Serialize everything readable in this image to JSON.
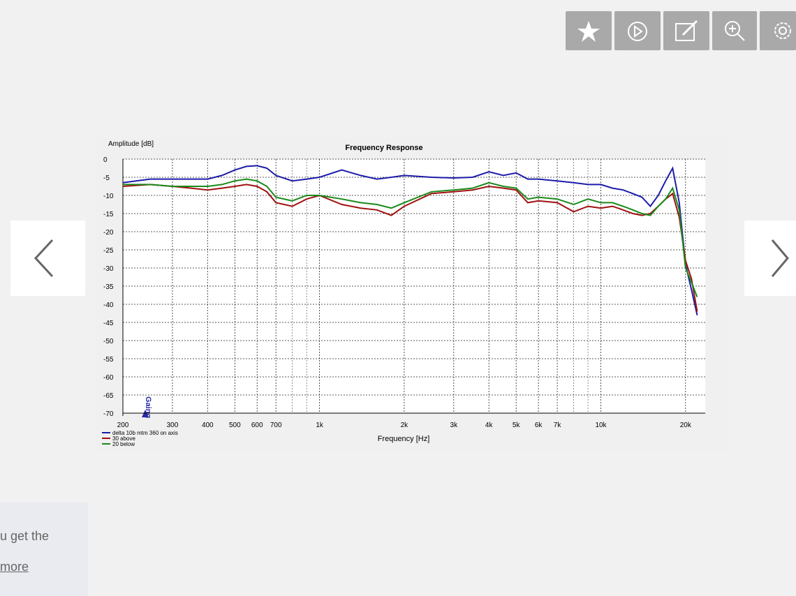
{
  "chart_data": {
    "type": "line",
    "title": "Frequency Response",
    "y_label": "Amplitude [dB]",
    "x_label": "Frequency [Hz]",
    "annotation": "Gaing",
    "x_scale": "log",
    "grid": true,
    "xlim": [
      200,
      23500
    ],
    "ylim": [
      -70,
      0
    ],
    "xticks": [
      200,
      300,
      400,
      500,
      600,
      700,
      {
        "value": 1000,
        "label": "1k"
      },
      {
        "value": 2000,
        "label": "2k"
      },
      {
        "value": 3000,
        "label": "3k"
      },
      {
        "value": 4000,
        "label": "4k"
      },
      {
        "value": 5000,
        "label": "5k"
      },
      {
        "value": 6000,
        "label": "6k"
      },
      {
        "value": 7000,
        "label": "7k"
      },
      {
        "value": 10000,
        "label": "10k"
      },
      {
        "value": 20000,
        "label": "20k"
      }
    ],
    "xminorticks": [
      800,
      900,
      8000,
      9000
    ],
    "yticks": [
      0,
      -5,
      -10,
      -15,
      -20,
      -25,
      -30,
      -35,
      -40,
      -45,
      -50,
      -55,
      -60,
      -65,
      -70
    ],
    "x": [
      200,
      250,
      300,
      350,
      400,
      450,
      500,
      550,
      600,
      650,
      700,
      800,
      900,
      1000,
      1200,
      1400,
      1600,
      1800,
      2000,
      2500,
      3000,
      3500,
      4000,
      4500,
      5000,
      5500,
      6000,
      7000,
      8000,
      9000,
      10000,
      11000,
      12000,
      13000,
      14000,
      15000,
      16000,
      17000,
      18000,
      19000,
      20000,
      21000,
      22000
    ],
    "series": [
      {
        "name": "delta 10b mtm 360 on axis",
        "color": "#1c1caa",
        "values": [
          -6.5,
          -5.5,
          -5.5,
          -5.5,
          -5.5,
          -4.5,
          -3,
          -2,
          -1.8,
          -2.5,
          -4.5,
          -6,
          -5.5,
          -5,
          -3,
          -4.5,
          -5.5,
          -5,
          -4.5,
          -5,
          -5.2,
          -5,
          -3.5,
          -4.5,
          -3.8,
          -5.5,
          -5.5,
          -6,
          -6.5,
          -7,
          -7,
          -8,
          -8.5,
          -9.5,
          -10.5,
          -13,
          -10,
          -6,
          -2.5,
          -12,
          -29,
          -36,
          -43
        ]
      },
      {
        "name": "30 above",
        "color": "#a01010",
        "values": [
          -7.5,
          -7,
          -7.5,
          -8,
          -8.5,
          -8,
          -7.5,
          -7,
          -7.5,
          -9,
          -12,
          -13,
          -11,
          -10,
          -12.5,
          -13.5,
          -14,
          -15.5,
          -13,
          -9.5,
          -9,
          -8.5,
          -7.5,
          -8,
          -8.5,
          -12,
          -11.5,
          -12,
          -14.5,
          -13,
          -13.5,
          -13,
          -14,
          -15,
          -15.5,
          -15,
          -13,
          -11,
          -9.5,
          -16,
          -28,
          -33,
          -42
        ]
      },
      {
        "name": "20 below",
        "color": "#1a8a1a",
        "values": [
          -7,
          -7,
          -7.5,
          -7.5,
          -7.5,
          -7,
          -6,
          -5.5,
          -6,
          -7.5,
          -10.5,
          -11.5,
          -10,
          -10,
          -11,
          -12,
          -12.5,
          -13.5,
          -12,
          -9,
          -8.5,
          -8,
          -6.5,
          -7.5,
          -8,
          -11,
          -10.5,
          -11,
          -12.5,
          -11,
          -12,
          -12,
          -13,
          -14,
          -15,
          -15.5,
          -13,
          -11,
          -8,
          -14,
          -30,
          -34,
          -38
        ]
      }
    ]
  },
  "notice": {
    "line1": "u get the",
    "link": "more"
  }
}
